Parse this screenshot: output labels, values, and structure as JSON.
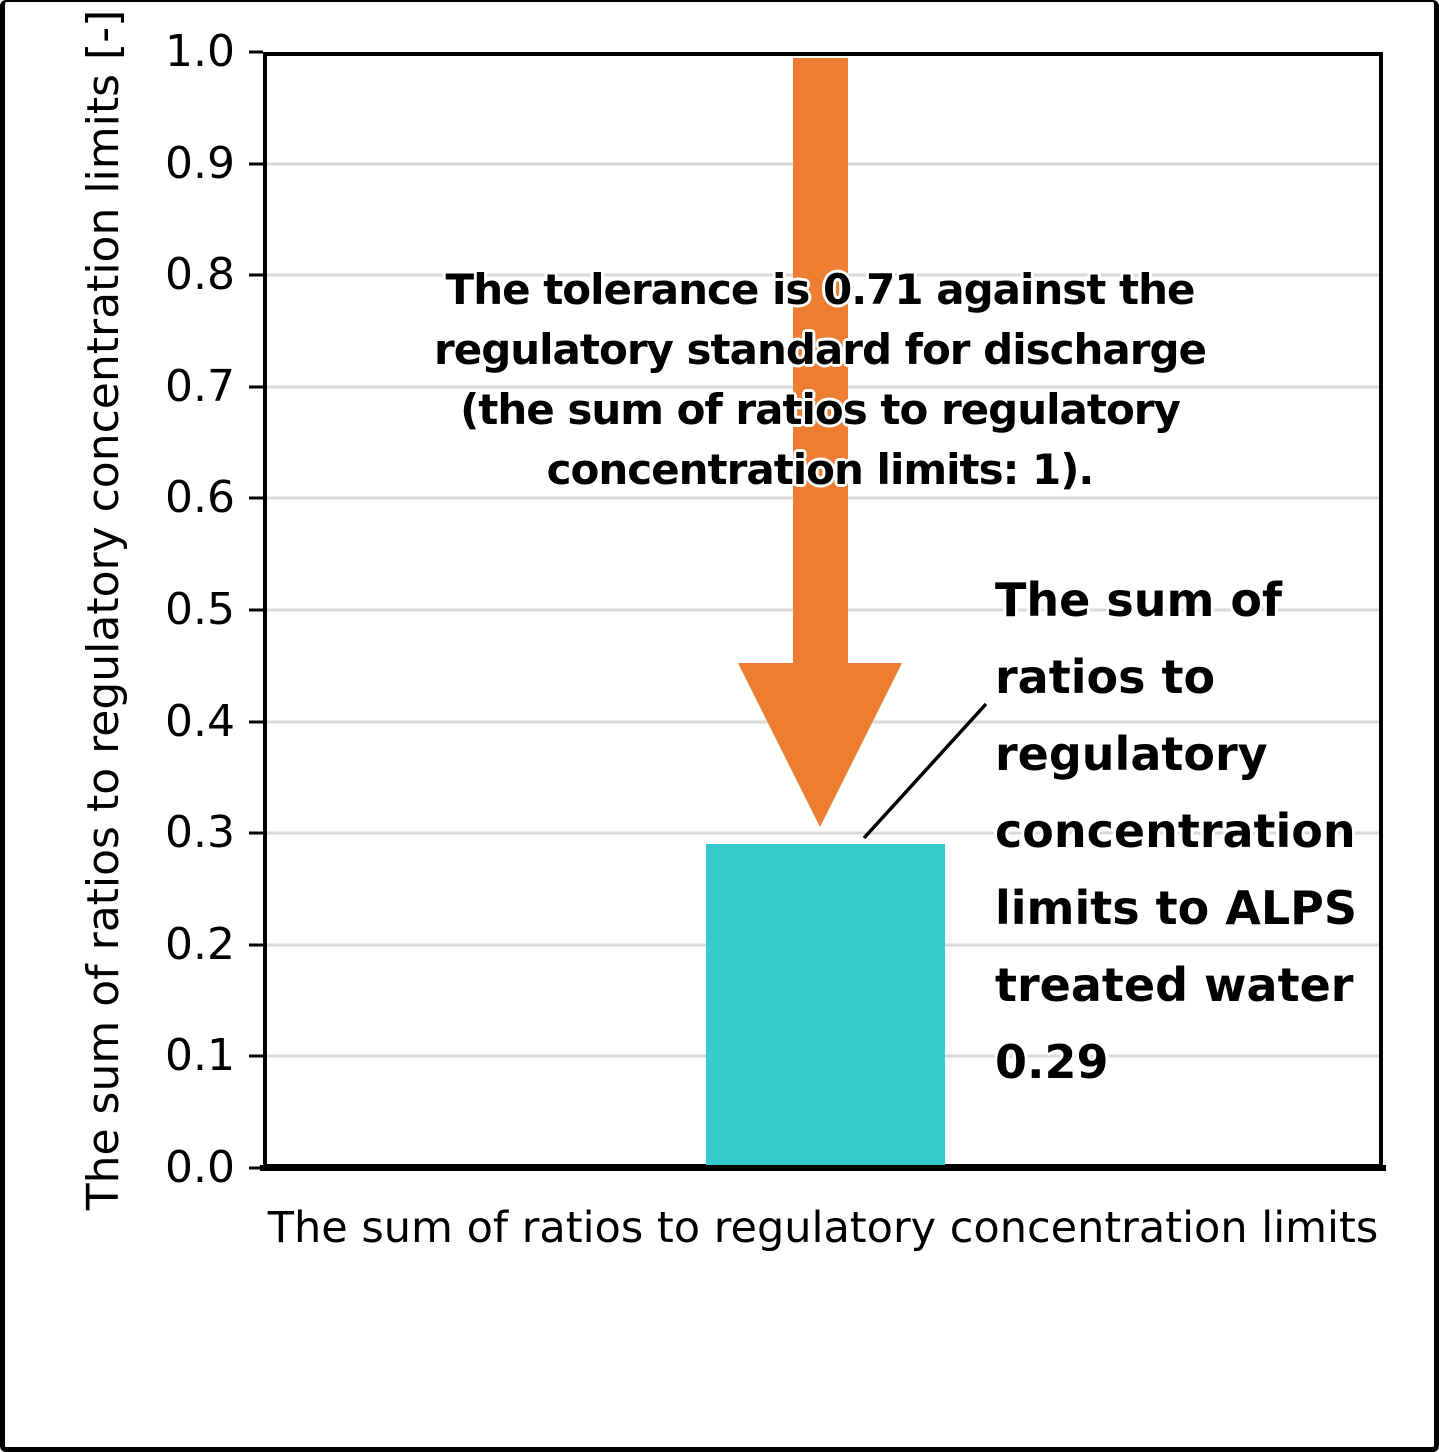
{
  "chart_data": {
    "type": "bar",
    "categories": [
      "ALPS treated water"
    ],
    "values": [
      0.29
    ],
    "title": "",
    "xlabel": "The sum of ratios to regulatory concentration limits",
    "ylabel": "The sum of ratios to regulatory concentration limits [-]",
    "ylim": [
      0.0,
      1.0
    ],
    "ytick_step": 0.1,
    "grid": true,
    "legend_position": "none",
    "bar_color": "#35CACD",
    "arrow": {
      "shape": "down-arrow",
      "color": "#EC7D31",
      "spans_values": [
        1.0,
        0.3
      ],
      "meaning": "gap between regulatory standard 1 and measured 0.29"
    },
    "annotations": [
      "The tolerance is 0.71 against the regulatory standard for discharge (the sum of ratios to regulatory concentration limits: 1).",
      "The sum of ratios to regulatory concentration limits to ALPS treated water 0.29"
    ]
  },
  "y_axis": {
    "title": "The sum of ratios to regulatory concentration limits [-]",
    "tick_labels": [
      "1.0",
      "0.9",
      "0.8",
      "0.7",
      "0.6",
      "0.5",
      "0.4",
      "0.3",
      "0.2",
      "0.1",
      "0.0"
    ]
  },
  "x_axis": {
    "label": "The sum of ratios to regulatory concentration limits"
  },
  "annotations": {
    "tolerance_note": {
      "text": "The tolerance is 0.71 against the\nregulatory standard for discharge\n(the sum of ratios to regulatory\nconcentration limits: 1).",
      "tolerance_value": "0.71"
    },
    "bar_value_note": {
      "text": "The sum of\nratios to\nregulatory\nconcentration\nlimits to ALPS\ntreated water\n0.29",
      "value": "0.29"
    }
  },
  "colors": {
    "bar": "#35CACD",
    "arrow": "#EC7D31",
    "gridline": "#D9D9D9",
    "axis": "#000000",
    "frame": "#000000",
    "background": "#FFFFFF"
  }
}
